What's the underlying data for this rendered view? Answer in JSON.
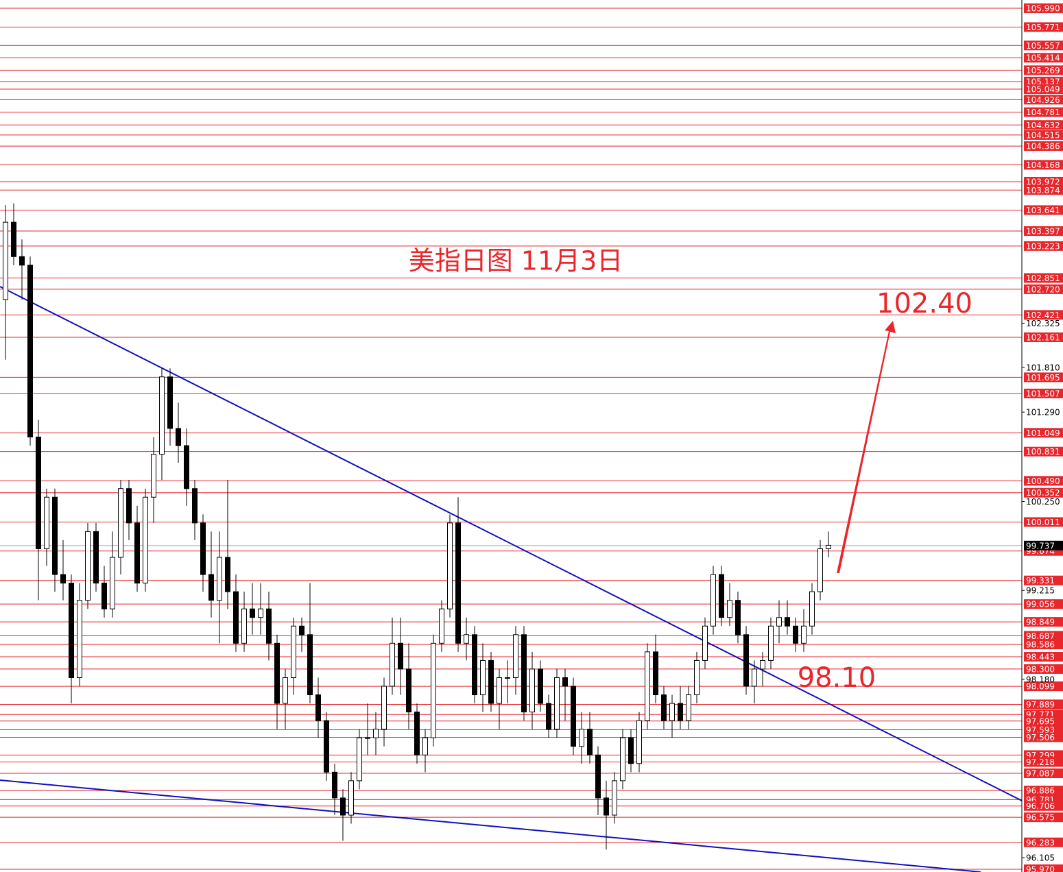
{
  "chart_data": {
    "type": "candlestick",
    "title": "美指日图  11月3日",
    "annotations": [
      "102.40",
      "98.10"
    ],
    "ylim": [
      95.938,
      106.086
    ],
    "candles": [
      [
        102.6,
        103.7,
        101.9,
        103.5
      ],
      [
        103.5,
        103.72,
        103.0,
        103.1
      ],
      [
        103.1,
        103.3,
        102.6,
        103.0
      ],
      [
        103.0,
        103.1,
        100.9,
        101.0
      ],
      [
        101.0,
        101.2,
        99.1,
        99.7
      ],
      [
        99.7,
        100.4,
        99.5,
        100.3
      ],
      [
        100.3,
        100.4,
        99.2,
        99.4
      ],
      [
        99.4,
        99.8,
        99.1,
        99.3
      ],
      [
        99.3,
        99.4,
        97.9,
        98.2
      ],
      [
        98.2,
        99.3,
        98.1,
        99.1
      ],
      [
        99.1,
        100.0,
        99.0,
        99.9
      ],
      [
        99.9,
        100.0,
        99.2,
        99.3
      ],
      [
        99.3,
        99.5,
        98.9,
        99.0
      ],
      [
        99.0,
        99.9,
        98.9,
        99.6
      ],
      [
        99.6,
        100.5,
        99.4,
        100.4
      ],
      [
        100.4,
        100.5,
        99.8,
        100.0
      ],
      [
        100.0,
        100.2,
        99.2,
        99.3
      ],
      [
        99.3,
        100.4,
        99.2,
        100.3
      ],
      [
        100.3,
        101.0,
        100.0,
        100.8
      ],
      [
        100.8,
        101.8,
        100.5,
        101.7
      ],
      [
        101.7,
        101.8,
        100.9,
        101.1
      ],
      [
        101.1,
        101.4,
        100.7,
        100.9
      ],
      [
        100.9,
        101.1,
        100.2,
        100.4
      ],
      [
        100.4,
        100.5,
        99.8,
        100.0
      ],
      [
        100.0,
        100.1,
        99.2,
        99.4
      ],
      [
        99.4,
        99.9,
        98.9,
        99.1
      ],
      [
        99.1,
        99.9,
        98.6,
        99.6
      ],
      [
        99.6,
        100.5,
        99.0,
        99.2
      ],
      [
        99.2,
        99.4,
        98.5,
        98.6
      ],
      [
        98.6,
        99.2,
        98.5,
        99.0
      ],
      [
        99.0,
        99.3,
        98.7,
        98.9
      ],
      [
        98.9,
        99.3,
        98.7,
        99.0
      ],
      [
        99.0,
        99.2,
        98.4,
        98.6
      ],
      [
        98.6,
        98.7,
        97.6,
        97.9
      ],
      [
        97.9,
        98.3,
        97.6,
        98.2
      ],
      [
        98.2,
        98.9,
        98.0,
        98.8
      ],
      [
        98.8,
        98.9,
        98.5,
        98.7
      ],
      [
        98.7,
        99.3,
        97.9,
        98.0
      ],
      [
        98.0,
        98.2,
        97.5,
        97.7
      ],
      [
        97.7,
        97.8,
        97.0,
        97.1
      ],
      [
        97.1,
        97.2,
        96.6,
        96.8
      ],
      [
        96.8,
        96.9,
        96.3,
        96.6
      ],
      [
        96.6,
        97.1,
        96.5,
        97.0
      ],
      [
        97.0,
        97.6,
        96.9,
        97.5
      ],
      [
        97.5,
        97.9,
        97.3,
        97.5
      ],
      [
        97.5,
        97.8,
        97.3,
        97.6
      ],
      [
        97.6,
        98.2,
        97.4,
        98.1
      ],
      [
        98.1,
        98.9,
        98.0,
        98.6
      ],
      [
        98.6,
        98.9,
        98.0,
        98.3
      ],
      [
        98.3,
        98.6,
        97.6,
        97.8
      ],
      [
        97.8,
        97.9,
        97.2,
        97.3
      ],
      [
        97.3,
        97.6,
        97.1,
        97.5
      ],
      [
        97.5,
        98.7,
        97.4,
        98.6
      ],
      [
        98.6,
        99.1,
        98.5,
        99.0
      ],
      [
        99.0,
        100.1,
        98.9,
        100.0
      ],
      [
        100.0,
        100.3,
        98.5,
        98.6
      ],
      [
        98.6,
        98.9,
        98.4,
        98.7
      ],
      [
        98.7,
        98.8,
        97.9,
        98.0
      ],
      [
        98.0,
        98.6,
        97.8,
        98.4
      ],
      [
        98.4,
        98.5,
        97.8,
        97.9
      ],
      [
        97.9,
        98.3,
        97.6,
        98.2
      ],
      [
        98.2,
        98.4,
        97.9,
        98.2
      ],
      [
        98.2,
        98.8,
        98.0,
        98.7
      ],
      [
        98.7,
        98.8,
        97.7,
        97.8
      ],
      [
        97.8,
        98.5,
        97.6,
        98.3
      ],
      [
        98.3,
        98.4,
        97.8,
        97.9
      ],
      [
        97.9,
        98.0,
        97.5,
        97.6
      ],
      [
        97.6,
        98.3,
        97.5,
        98.2
      ],
      [
        98.2,
        98.3,
        97.7,
        98.1
      ],
      [
        98.1,
        98.2,
        97.3,
        97.4
      ],
      [
        97.4,
        97.8,
        97.2,
        97.6
      ],
      [
        97.6,
        97.8,
        97.2,
        97.3
      ],
      [
        97.3,
        97.4,
        96.6,
        96.8
      ],
      [
        96.8,
        97.0,
        96.2,
        96.6
      ],
      [
        96.6,
        97.1,
        96.5,
        97.0
      ],
      [
        97.0,
        97.6,
        96.9,
        97.5
      ],
      [
        97.5,
        97.6,
        97.1,
        97.2
      ],
      [
        97.2,
        97.8,
        97.1,
        97.7
      ],
      [
        97.7,
        98.6,
        97.6,
        98.5
      ],
      [
        98.5,
        98.7,
        97.9,
        98.0
      ],
      [
        98.0,
        98.1,
        97.6,
        97.7
      ],
      [
        97.7,
        98.0,
        97.5,
        97.9
      ],
      [
        97.9,
        98.1,
        97.6,
        97.7
      ],
      [
        97.7,
        98.1,
        97.6,
        98.0
      ],
      [
        98.0,
        98.5,
        97.9,
        98.4
      ],
      [
        98.4,
        98.9,
        98.3,
        98.8
      ],
      [
        98.8,
        99.5,
        98.7,
        99.4
      ],
      [
        99.4,
        99.5,
        98.8,
        98.9
      ],
      [
        98.9,
        99.3,
        98.8,
        99.1
      ],
      [
        99.1,
        99.2,
        98.6,
        98.7
      ],
      [
        98.7,
        98.8,
        98.0,
        98.1
      ],
      [
        98.1,
        98.4,
        97.9,
        98.3
      ],
      [
        98.3,
        98.5,
        98.1,
        98.4
      ],
      [
        98.4,
        98.9,
        98.3,
        98.8
      ],
      [
        98.8,
        99.1,
        98.6,
        98.9
      ],
      [
        98.9,
        99.1,
        98.7,
        98.8
      ],
      [
        98.8,
        98.9,
        98.5,
        98.6
      ],
      [
        98.6,
        99.0,
        98.5,
        98.8
      ],
      [
        98.8,
        99.3,
        98.7,
        99.2
      ],
      [
        99.2,
        99.8,
        99.1,
        99.7
      ],
      [
        99.7,
        99.9,
        99.6,
        99.74
      ]
    ],
    "yticks": [
      102.325,
      {
        "value": 101.81,
        "label": "101.810"
      },
      {
        "value": 101.29,
        "label": "101.290"
      },
      {
        "value": 100.25,
        "label": "100.250"
      },
      99.215,
      {
        "value": 98.18,
        "label": "98.180"
      },
      96.105
    ],
    "levels": [
      {
        "value": 105.99,
        "label": "105.990"
      },
      105.771,
      105.557,
      105.414,
      105.269,
      105.137,
      105.049,
      104.926,
      104.781,
      104.632,
      104.515,
      104.386,
      104.168,
      103.972,
      103.874,
      103.641,
      103.397,
      103.223,
      102.851,
      {
        "value": 102.72,
        "label": "102.720"
      },
      102.421,
      102.161,
      101.695,
      101.507,
      101.049,
      100.831,
      {
        "value": 100.49,
        "label": "100.490"
      },
      100.352,
      100.011,
      99.674,
      99.331,
      99.056,
      98.849,
      98.687,
      98.586,
      98.443,
      {
        "value": 98.3,
        "label": "98.300"
      },
      98.099,
      97.889,
      97.771,
      97.695,
      97.593,
      97.506,
      97.299,
      97.218,
      97.087,
      96.886,
      96.781,
      96.706,
      96.575,
      96.283,
      {
        "value": 95.97,
        "label": "95.970"
      }
    ],
    "last_price": 99.737,
    "level_color": "#e8262b",
    "up_color": "#ffffff",
    "down_color": "#000000"
  }
}
